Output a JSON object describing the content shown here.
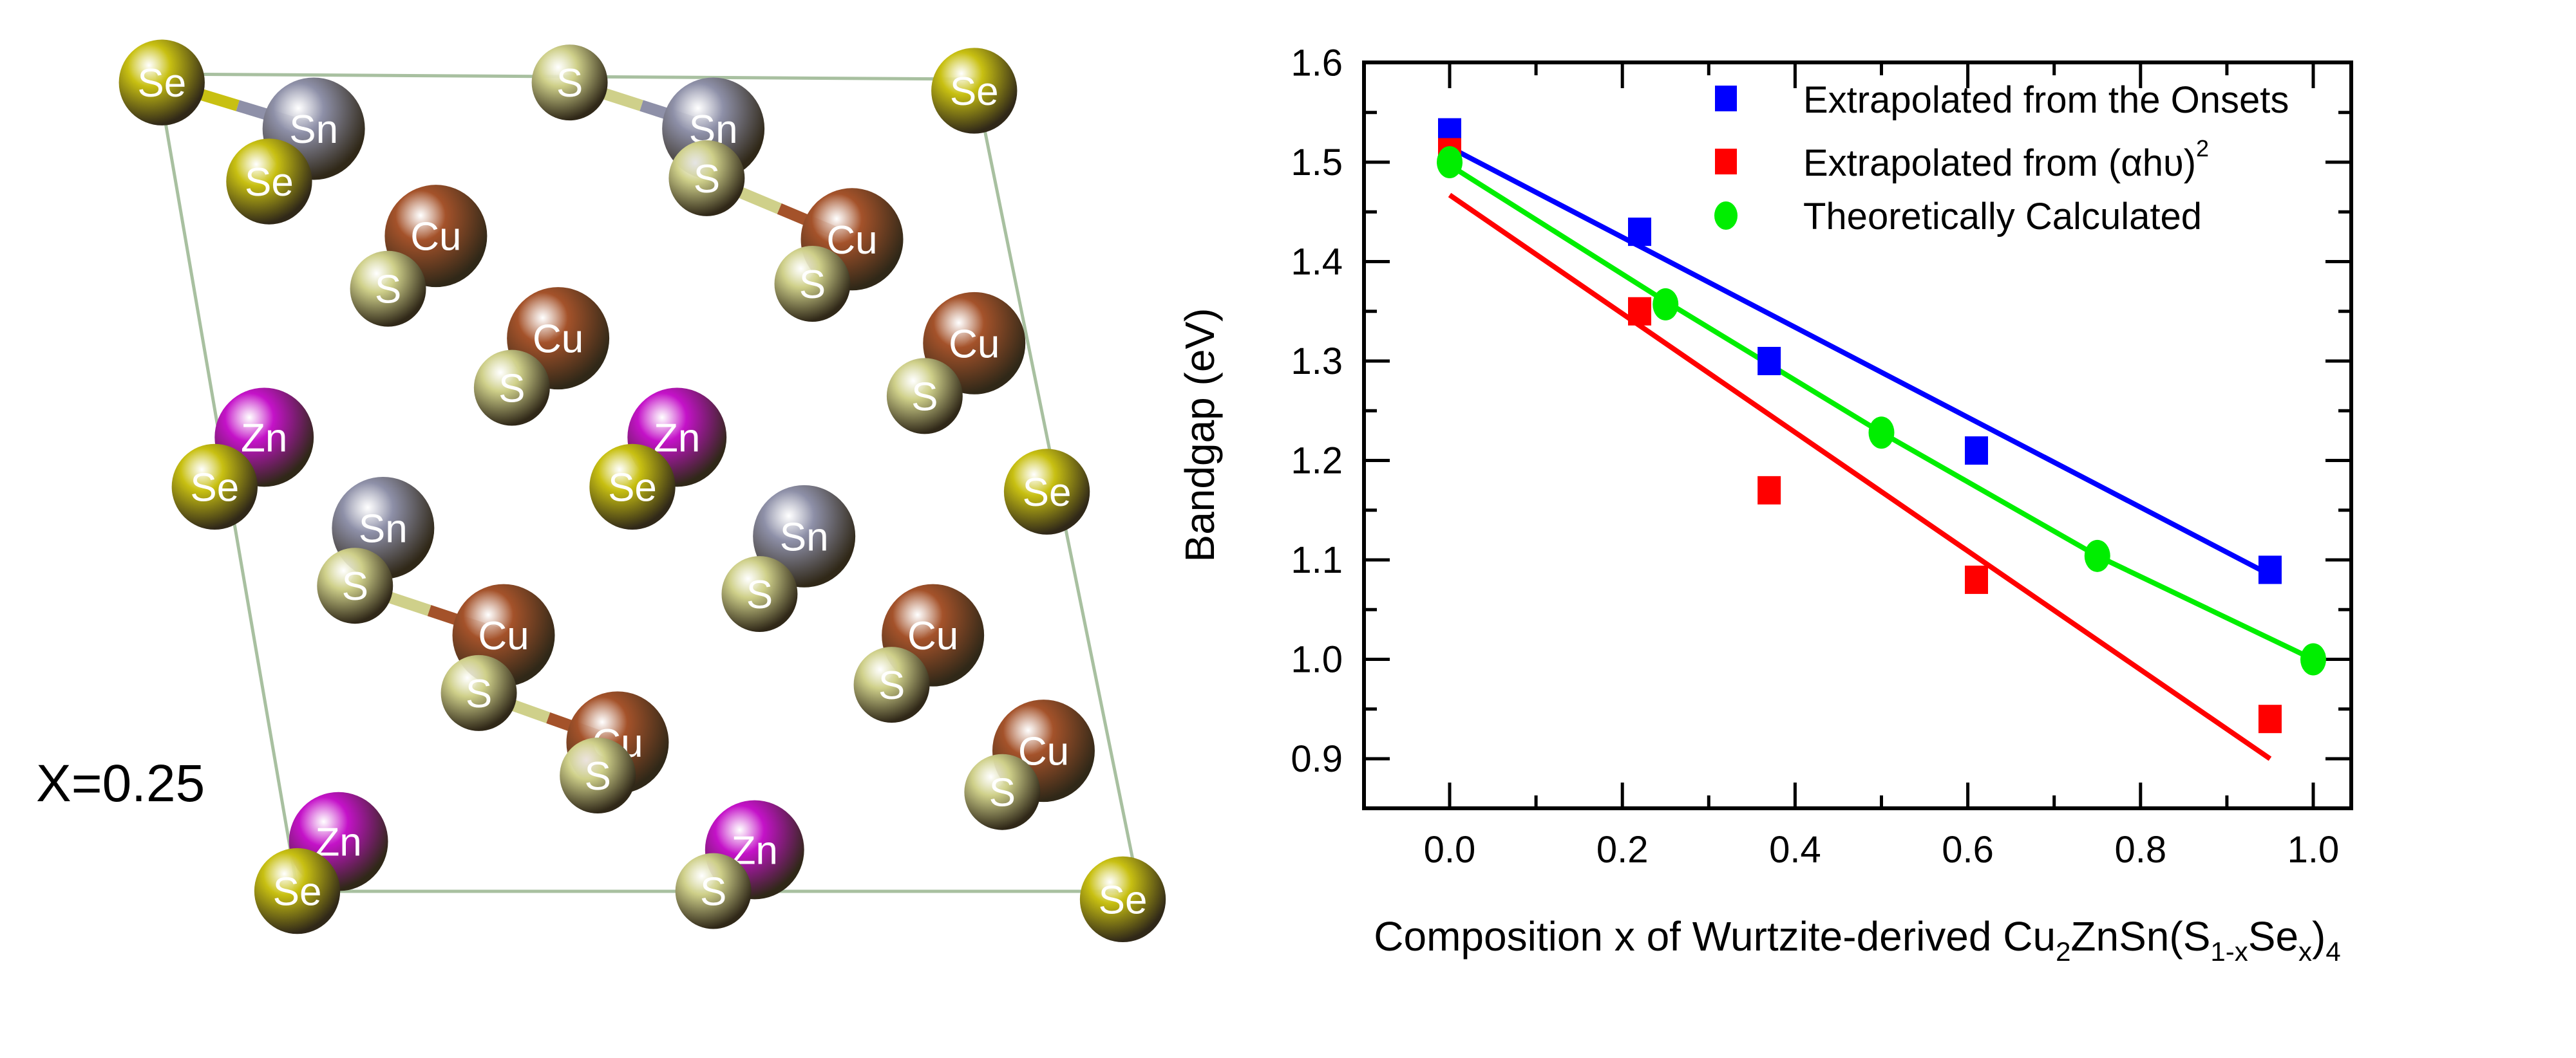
{
  "structure": {
    "label": "X=0.25",
    "atoms": [
      "Se",
      "Sn",
      "S",
      "Sn",
      "Se",
      "Se",
      "Cu",
      "S",
      "Cu",
      "S",
      "Cu",
      "S",
      "Cu",
      "Zn",
      "S",
      "Zn",
      "S",
      "Se",
      "Sn",
      "Se",
      "Sn",
      "Se",
      "S",
      "Cu",
      "S",
      "Cu",
      "S",
      "Cu",
      "S",
      "Cu",
      "Zn",
      "S",
      "Zn",
      "S",
      "Se",
      "S",
      "Se"
    ],
    "colors": {
      "Se": "#c8c012",
      "Sn": "#8e90a8",
      "S": "#cfd08a",
      "Cu": "#a4522a",
      "Zn": "#c412c8"
    }
  },
  "chart_data": {
    "type": "scatter",
    "title": "",
    "xlabel": "Composition x of Wurtzite-derived Cu2ZnSn(S1-xSex)4",
    "xlabel_parts": {
      "a": "Composition x of Wurtzite-derived Cu",
      "s1": "2",
      "b": "ZnSn(S",
      "s2": "1-x",
      "c": "Se",
      "s3": "x",
      "d": ")",
      "s4": "4"
    },
    "ylabel": "Bandgap (eV)",
    "xlim": [
      -0.1,
      1.05
    ],
    "ylim": [
      0.85,
      1.6
    ],
    "xticks": [
      "0.0",
      "0.2",
      "0.4",
      "0.6",
      "0.8",
      "1.0"
    ],
    "yticks": [
      "0.9",
      "1.0",
      "1.1",
      "1.2",
      "1.3",
      "1.4",
      "1.5",
      "1.6"
    ],
    "legend_position": "top-right",
    "series": [
      {
        "name": "Extrapolated from the Onsets",
        "legend": "Extrapolated from the Onsets",
        "marker": "square",
        "color": "#0000ff",
        "x": [
          0.0,
          0.22,
          0.37,
          0.61,
          0.95
        ],
        "y": [
          1.53,
          1.43,
          1.3,
          1.21,
          1.09
        ],
        "fit": {
          "x": [
            0.0,
            0.95
          ],
          "y": [
            1.515,
            1.085
          ]
        }
      },
      {
        "name": "Extrapolated from (αhυ)^2",
        "legend": "Extrapolated from (αhυ)",
        "legend_sup": "2",
        "marker": "square",
        "color": "#ff0000",
        "x": [
          0.0,
          0.22,
          0.37,
          0.61,
          0.95
        ],
        "y": [
          1.51,
          1.35,
          1.17,
          1.08,
          0.94
        ],
        "fit": {
          "x": [
            0.0,
            0.95
          ],
          "y": [
            1.467,
            0.9
          ]
        }
      },
      {
        "name": "Theoretically Calculated",
        "legend": "Theoretically Calculated",
        "marker": "circle",
        "color": "#00ee00",
        "x": [
          0.0,
          0.25,
          0.5,
          0.75,
          1.0
        ],
        "y": [
          1.5,
          1.357,
          1.228,
          1.104,
          1.0
        ],
        "fit": {
          "x": [
            0.0,
            0.25,
            0.5,
            0.75,
            1.0
          ],
          "y": [
            1.497,
            1.36,
            1.228,
            1.104,
            1.0
          ]
        }
      }
    ]
  }
}
